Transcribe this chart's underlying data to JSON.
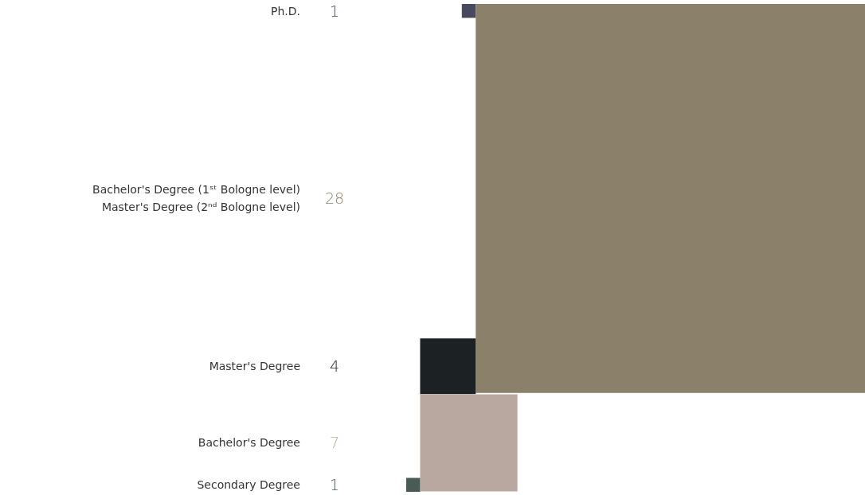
{
  "chart_data": {
    "type": "other",
    "categories": [
      "Ph.D.",
      "Bachelor's Degree (1ˢᵗ Bologne level)\nMaster's Degree (2ⁿᵈ Bologne level)",
      "Master's Degree",
      "Bachelor's Degree",
      "Secondary Degree"
    ],
    "values": [
      1,
      28,
      4,
      7,
      1
    ],
    "colors": [
      "#474a5e",
      "#8b806a",
      "#1c2124",
      "#b9a8a0",
      "#4a5a55"
    ],
    "data_labels": true
  }
}
